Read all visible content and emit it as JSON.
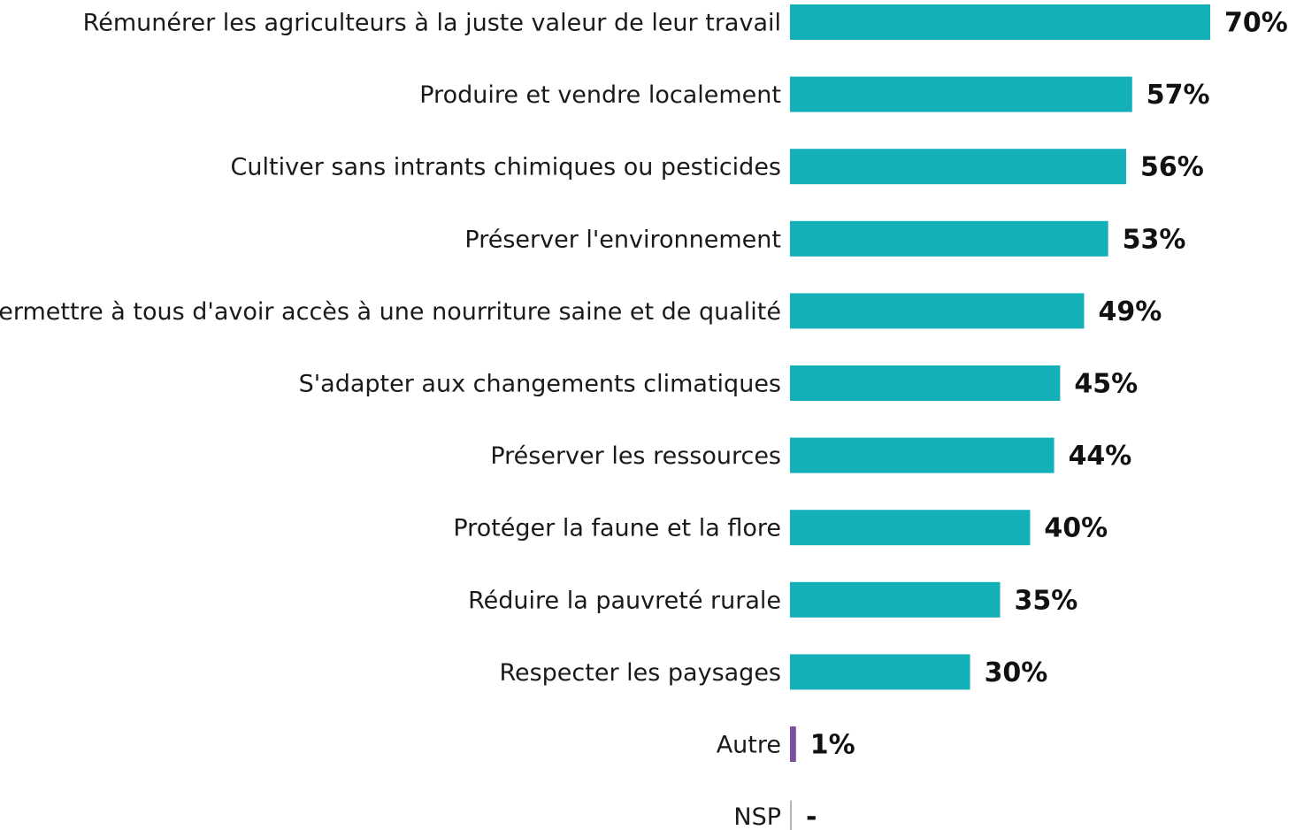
{
  "chart_data": {
    "type": "bar",
    "orientation": "horizontal",
    "categories": [
      "Rémunérer les agriculteurs à la juste valeur de leur travail",
      "Produire et vendre localement",
      "Cultiver sans intrants chimiques ou pesticides",
      "Préserver l'environnement",
      "Permettre à tous d'avoir accès à une nourriture saine et de qualité",
      "S'adapter aux changements climatiques",
      "Préserver les ressources",
      "Protéger la faune et la flore",
      "Réduire la pauvreté rurale",
      "Respecter les paysages",
      "Autre",
      "NSP"
    ],
    "values": [
      70,
      57,
      56,
      53,
      49,
      45,
      44,
      40,
      35,
      30,
      1,
      null
    ],
    "value_labels": [
      "70%",
      "57%",
      "56%",
      "53%",
      "49%",
      "45%",
      "44%",
      "40%",
      "35%",
      "30%",
      "1%",
      "-"
    ],
    "colors": [
      "#13b0b8",
      "#13b0b8",
      "#13b0b8",
      "#13b0b8",
      "#13b0b8",
      "#13b0b8",
      "#13b0b8",
      "#13b0b8",
      "#13b0b8",
      "#13b0b8",
      "#7b4f9d",
      "#b5b5b5"
    ]
  }
}
